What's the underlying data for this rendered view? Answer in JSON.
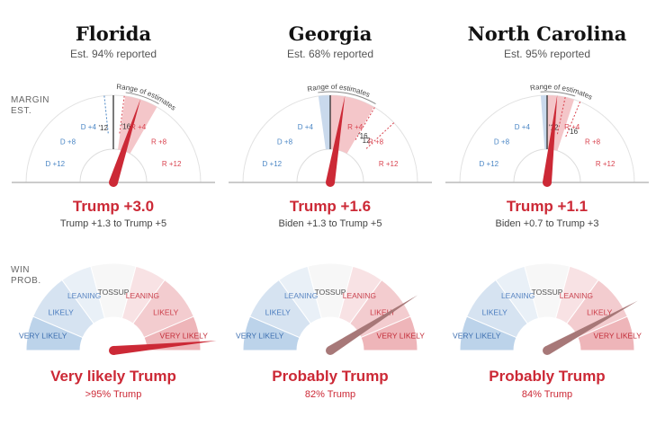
{
  "row_labels": {
    "margin_line1": "MARGIN",
    "margin_line2": "EST.",
    "win_line1": "WIN",
    "win_line2": "PROB."
  },
  "range_label": "Range of estimates",
  "margin_ticks": [
    "D +12",
    "D +8",
    "D +4",
    "R +4",
    "R +8",
    "R +12"
  ],
  "win_zones": [
    "VERY LIKELY",
    "LIKELY",
    "LEANING",
    "TOSSUP",
    "LEANING",
    "LIKELY",
    "VERY LIKELY"
  ],
  "colors": {
    "rep": "#cc2936",
    "dem_tick": "#4a86c5",
    "rep_tick": "#d9434f",
    "grey_needle": "#a77878",
    "axis": "#999999"
  },
  "states": [
    {
      "name": "Florida",
      "reported": "Est. 94% reported",
      "margin_text": "Trump +3.0",
      "range_text": "Trump +1.3 to Trump +5",
      "win_text": "Very likely Trump",
      "win_pct": ">95% Trump",
      "win_needle": "red"
    },
    {
      "name": "Georgia",
      "reported": "Est. 68% reported",
      "margin_text": "Trump +1.6",
      "range_text": "Biden +1.3 to Trump +5",
      "win_text": "Probably Trump",
      "win_pct": "82% Trump",
      "win_needle": "grey"
    },
    {
      "name": "North Carolina",
      "reported": "Est. 95% reported",
      "margin_text": "Trump +1.1",
      "range_text": "Biden +0.7 to Trump +3",
      "win_text": "Probably Trump",
      "win_pct": "84% Trump",
      "win_needle": "grey"
    }
  ],
  "chart_data": [
    {
      "type": "gauge",
      "title": "Margin estimate",
      "axis_ticks": [
        -12,
        -8,
        -4,
        4,
        8,
        12
      ],
      "range": [
        -12,
        12
      ],
      "series": [
        {
          "state": "Florida",
          "estimate": 3.0,
          "range_low": 1.3,
          "range_high": 5.0,
          "margin_2012": -1,
          "margin_2016": 1.2,
          "label_2012": "'12",
          "label_2016": "'16"
        },
        {
          "state": "Georgia",
          "estimate": 1.6,
          "range_low": -1.3,
          "range_high": 5.0,
          "margin_2012": 7.8,
          "margin_2016": 5.1,
          "label_2012": "'12",
          "label_2016": "'16"
        },
        {
          "state": "North Carolina",
          "estimate": 1.1,
          "range_low": -0.7,
          "range_high": 3.0,
          "margin_2012": 2.0,
          "margin_2016": 3.7,
          "label_2012": "'12",
          "label_2016": "'16"
        }
      ]
    },
    {
      "type": "gauge",
      "title": "Win probability",
      "zones": [
        "VERY LIKELY",
        "LIKELY",
        "LEANING",
        "TOSSUP",
        "LEANING",
        "LIKELY",
        "VERY LIKELY"
      ],
      "series": [
        {
          "state": "Florida",
          "trump_probability": 97
        },
        {
          "state": "Georgia",
          "trump_probability": 82
        },
        {
          "state": "North Carolina",
          "trump_probability": 84
        }
      ]
    }
  ]
}
